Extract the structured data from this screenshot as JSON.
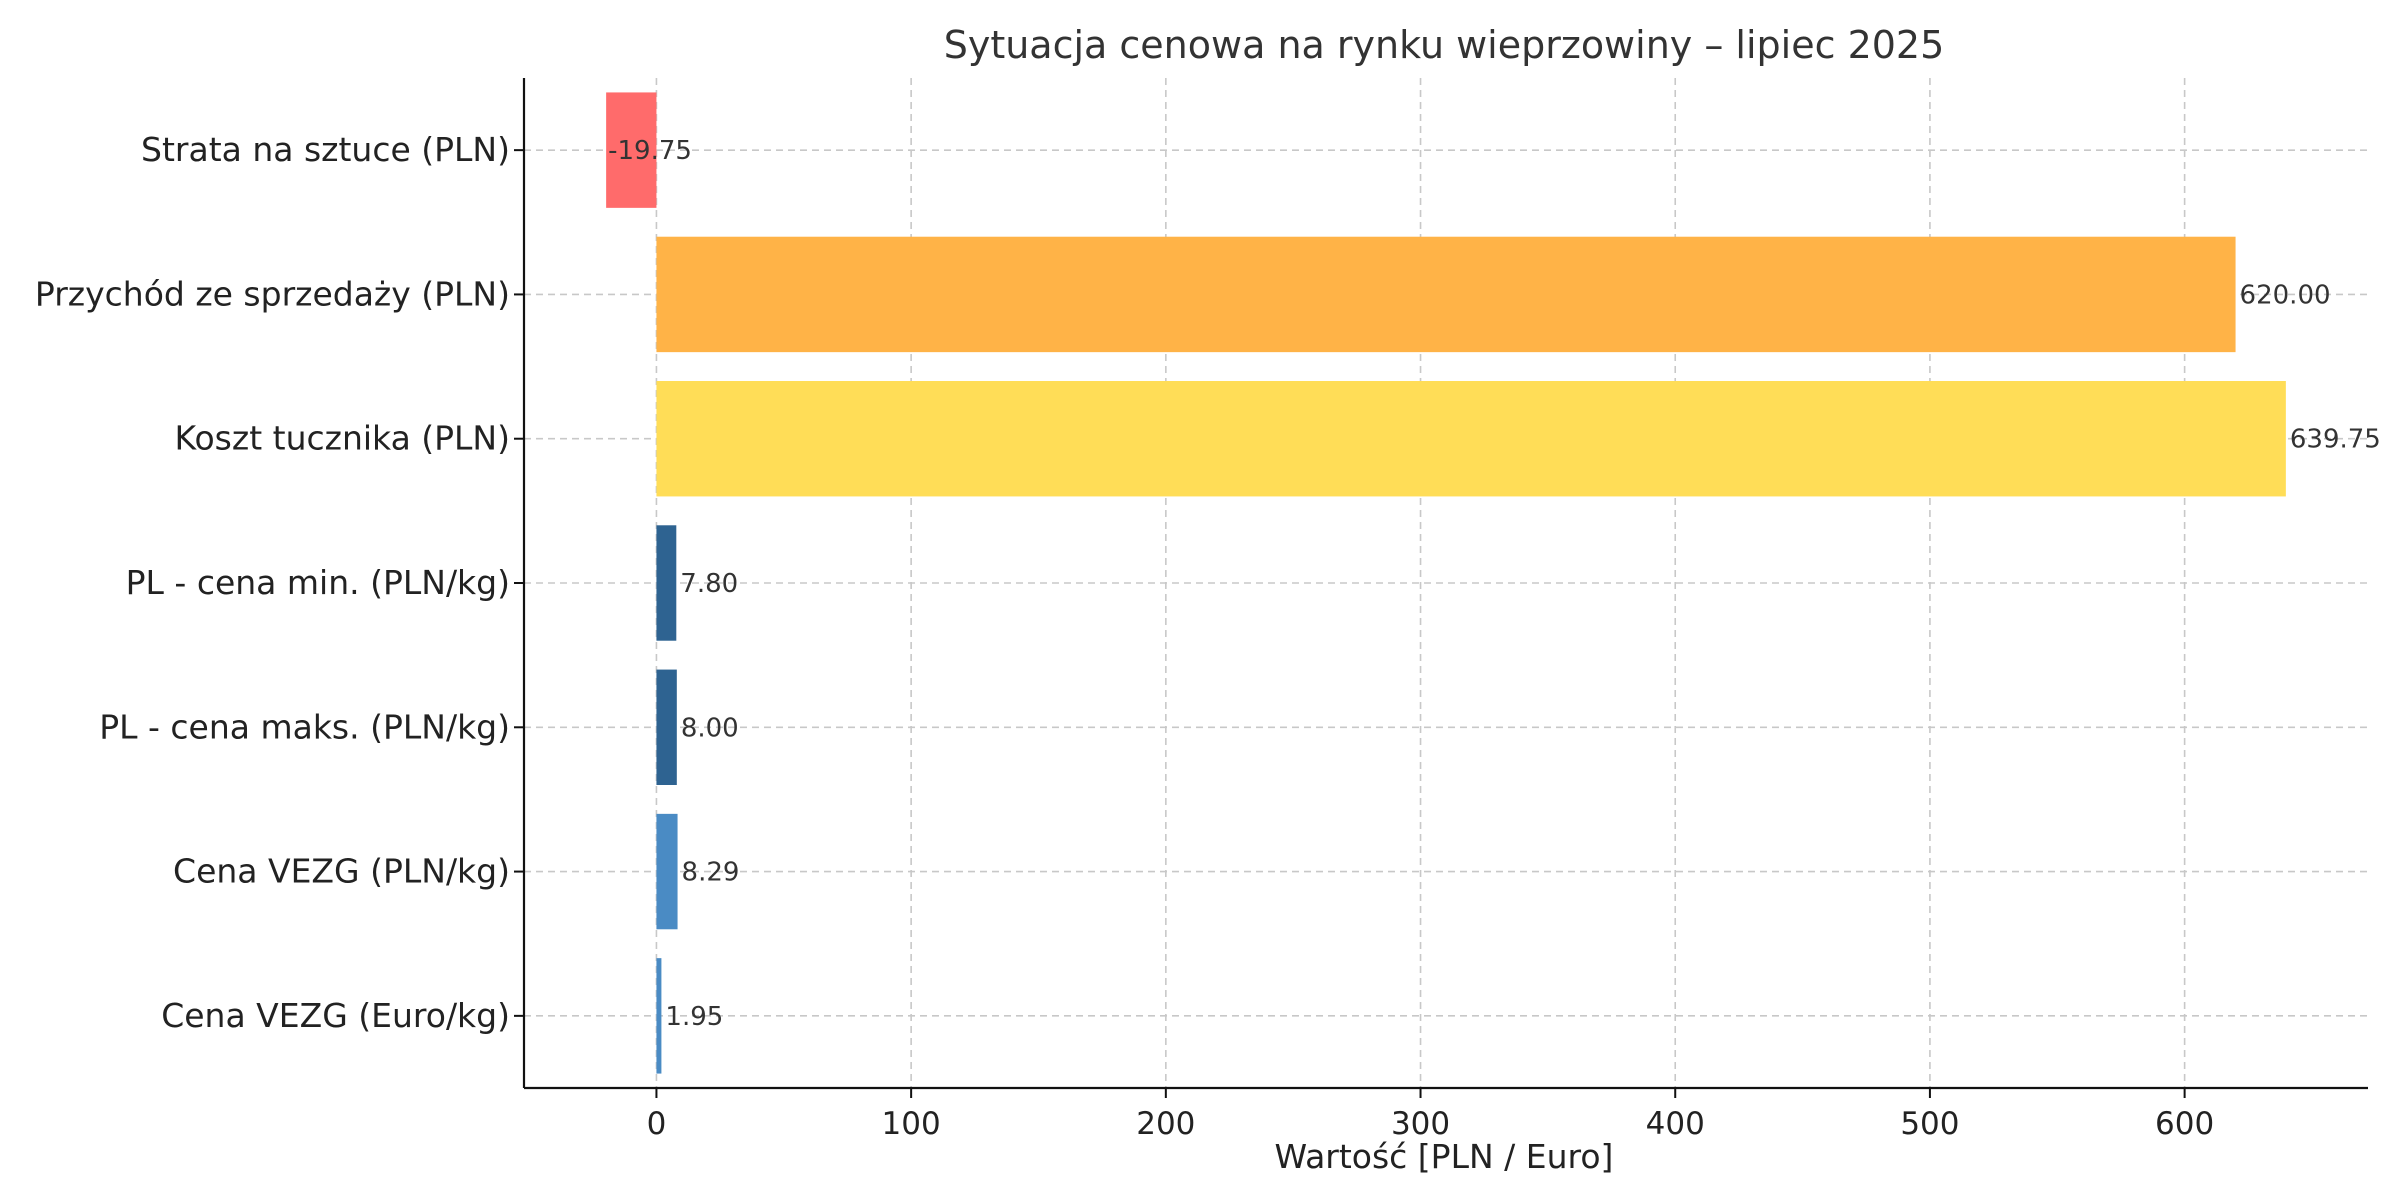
{
  "chart_data": {
    "type": "bar",
    "orientation": "horizontal",
    "title": "Sytuacja cenowa na rynku wieprzowiny – lipiec 2025",
    "xlabel": "Wartość [PLN / Euro]",
    "ylabel": "",
    "xlim": [
      -52,
      672
    ],
    "xticks": [
      0,
      100,
      200,
      300,
      400,
      500,
      600
    ],
    "grid": true,
    "categories": [
      "Strata na sztuce (PLN)",
      "Przychód ze sprzedaży (PLN)",
      "Koszt tucznika (PLN)",
      "PL - cena min. (PLN/kg)",
      "PL - cena maks. (PLN/kg)",
      "Cena VEZG (PLN/kg)",
      "Cena VEZG (Euro/kg)"
    ],
    "values": [
      -19.75,
      620.0,
      639.75,
      7.8,
      8.0,
      8.29,
      1.95
    ],
    "value_labels": [
      "-19.75",
      "620.00",
      "639.75",
      "7.80",
      "8.00",
      "8.29",
      "1.95"
    ],
    "colors": [
      "#ff6b6b",
      "#ffb347",
      "#ffdd57",
      "#2e6391",
      "#2e6391",
      "#4a8bc4",
      "#4a8bc4"
    ]
  }
}
